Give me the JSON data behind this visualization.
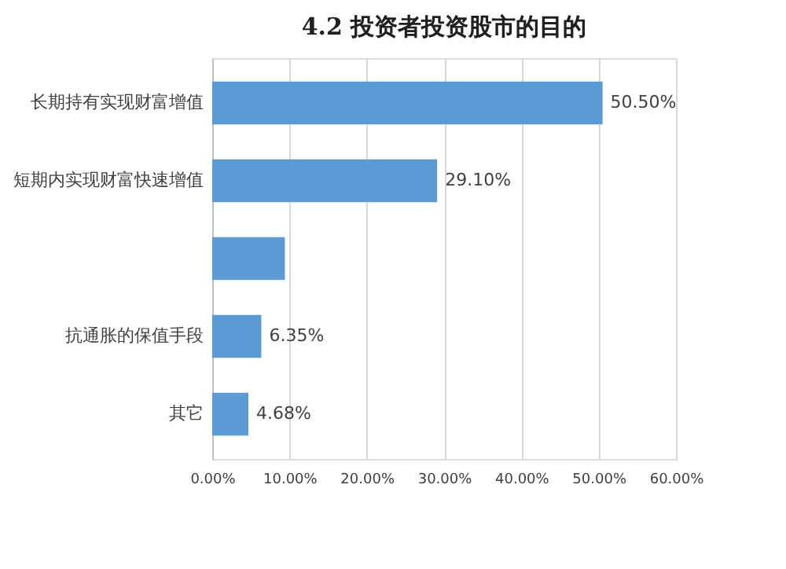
{
  "chart_data": {
    "type": "bar",
    "orientation": "horizontal",
    "title": "4.2 投资者投资股市的目的",
    "categories": [
      "长期持有实现财富增值",
      "短期内实现财富快速增值",
      null,
      "抗通胀的保值手段",
      "其它"
    ],
    "values": [
      50.5,
      29.1,
      9.4,
      6.35,
      4.68
    ],
    "value_labels": [
      "50.50%",
      "29.10%",
      null,
      "6.35%",
      "4.68%"
    ],
    "color": "#5b9bd5",
    "xlim": [
      0,
      60
    ],
    "xticks": [
      {
        "value": 0,
        "label": "0.00%"
      },
      {
        "value": 10,
        "label": "10.00%"
      },
      {
        "value": 20,
        "label": "20.00%"
      },
      {
        "value": 30,
        "label": "30.00%"
      },
      {
        "value": 40,
        "label": "40.00%"
      },
      {
        "value": 50,
        "label": "50.00%"
      },
      {
        "value": 60,
        "label": "60.00%"
      }
    ],
    "grid": "x"
  }
}
